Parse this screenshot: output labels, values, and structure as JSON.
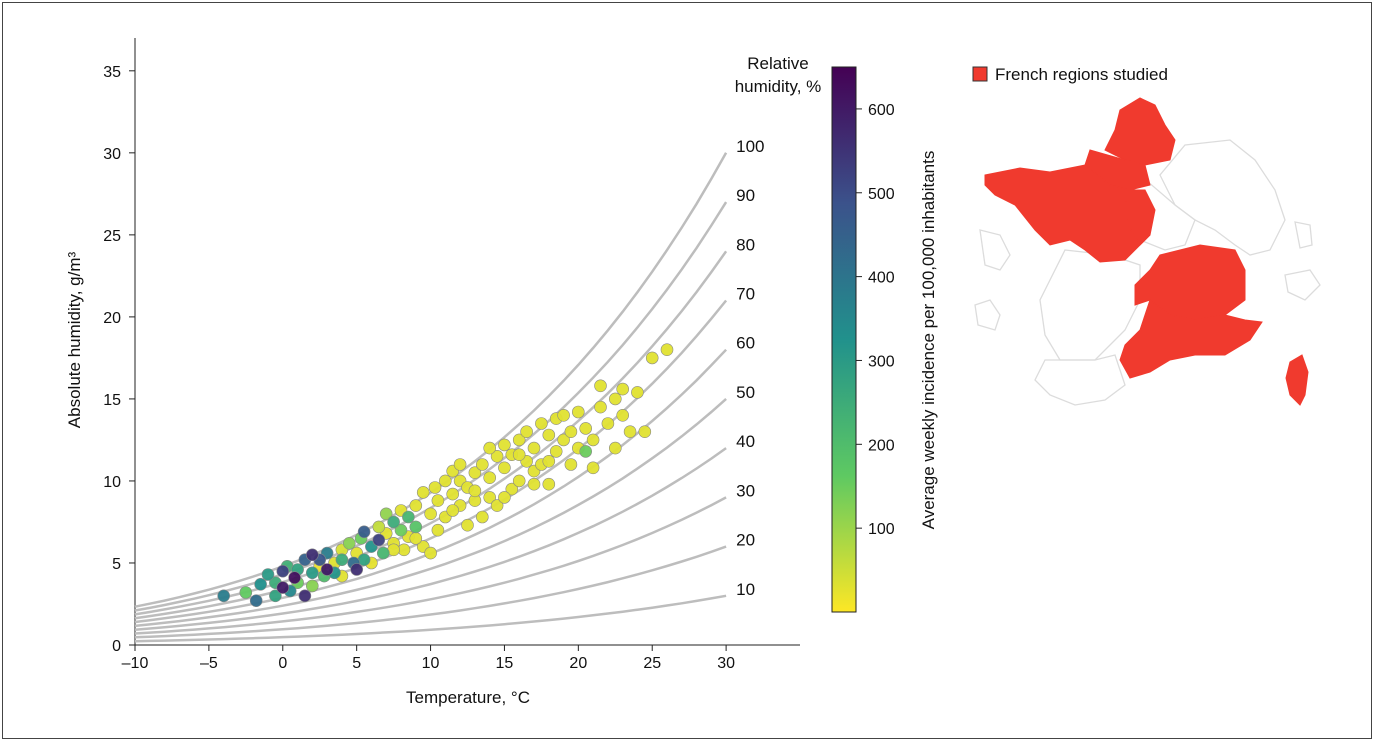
{
  "chart_data": {
    "type": "scatter",
    "xlabel": "Temperature, °C",
    "ylabel": "Absolute humidity, g/m³",
    "xlim": [
      -10,
      35
    ],
    "ylim": [
      0,
      37
    ],
    "x_ticks": [
      -10,
      -5,
      0,
      5,
      10,
      15,
      20,
      25,
      30
    ],
    "x_tick_labels": [
      "–10",
      "–5",
      "0",
      "5",
      "10",
      "15",
      "20",
      "25",
      "30"
    ],
    "y_ticks": [
      0,
      5,
      10,
      15,
      20,
      25,
      30,
      35
    ],
    "y_tick_labels": [
      "0",
      "5",
      "10",
      "15",
      "20",
      "25",
      "30",
      "35"
    ],
    "relative_humidity_title": [
      "Relative",
      "humidity, %"
    ],
    "relative_humidity_curves": [
      10,
      20,
      30,
      40,
      50,
      60,
      70,
      80,
      90,
      100
    ],
    "colorbar": {
      "label": "Average weekly incidence per 100,000 inhabitants",
      "range": [
        0,
        650
      ],
      "ticks": [
        100,
        200,
        300,
        400,
        500,
        600
      ],
      "colormap": "viridis"
    },
    "points": [
      {
        "x": -4,
        "y": 3.0,
        "c": 380
      },
      {
        "x": -2.5,
        "y": 3.2,
        "c": 160
      },
      {
        "x": -1.8,
        "y": 2.7,
        "c": 420
      },
      {
        "x": -1.5,
        "y": 3.7,
        "c": 330
      },
      {
        "x": -1.0,
        "y": 4.3,
        "c": 300
      },
      {
        "x": -0.5,
        "y": 3.8,
        "c": 250
      },
      {
        "x": -0.5,
        "y": 3.0,
        "c": 280
      },
      {
        "x": 0.0,
        "y": 4.5,
        "c": 520
      },
      {
        "x": 0.0,
        "y": 3.5,
        "c": 600
      },
      {
        "x": 0.3,
        "y": 4.8,
        "c": 240
      },
      {
        "x": 0.5,
        "y": 3.3,
        "c": 350
      },
      {
        "x": 0.8,
        "y": 4.1,
        "c": 620
      },
      {
        "x": 1.0,
        "y": 4.6,
        "c": 280
      },
      {
        "x": 1.0,
        "y": 3.8,
        "c": 150
      },
      {
        "x": 1.5,
        "y": 5.2,
        "c": 450
      },
      {
        "x": 1.5,
        "y": 3.0,
        "c": 560
      },
      {
        "x": 2.0,
        "y": 5.5,
        "c": 560
      },
      {
        "x": 2.0,
        "y": 4.4,
        "c": 300
      },
      {
        "x": 2.0,
        "y": 3.6,
        "c": 120
      },
      {
        "x": 2.5,
        "y": 4.8,
        "c": 20
      },
      {
        "x": 2.5,
        "y": 5.2,
        "c": 480
      },
      {
        "x": 2.8,
        "y": 4.2,
        "c": 200
      },
      {
        "x": 3.0,
        "y": 5.6,
        "c": 380
      },
      {
        "x": 3.0,
        "y": 4.6,
        "c": 600
      },
      {
        "x": 3.5,
        "y": 5.0,
        "c": 30
      },
      {
        "x": 3.5,
        "y": 4.4,
        "c": 320
      },
      {
        "x": 4.0,
        "y": 5.8,
        "c": 40
      },
      {
        "x": 4.0,
        "y": 5.2,
        "c": 250
      },
      {
        "x": 4.0,
        "y": 4.2,
        "c": 30
      },
      {
        "x": 4.5,
        "y": 6.2,
        "c": 120
      },
      {
        "x": 4.8,
        "y": 5.0,
        "c": 420
      },
      {
        "x": 5.0,
        "y": 5.6,
        "c": 30
      },
      {
        "x": 5.0,
        "y": 4.6,
        "c": 560
      },
      {
        "x": 5.3,
        "y": 6.5,
        "c": 150
      },
      {
        "x": 5.5,
        "y": 5.2,
        "c": 280
      },
      {
        "x": 5.5,
        "y": 6.9,
        "c": 460
      },
      {
        "x": 6.0,
        "y": 6.0,
        "c": 320
      },
      {
        "x": 6.0,
        "y": 5.0,
        "c": 25
      },
      {
        "x": 6.5,
        "y": 6.4,
        "c": 520
      },
      {
        "x": 6.5,
        "y": 7.2,
        "c": 60
      },
      {
        "x": 6.8,
        "y": 5.6,
        "c": 220
      },
      {
        "x": 7.0,
        "y": 6.8,
        "c": 30
      },
      {
        "x": 7.0,
        "y": 8.0,
        "c": 110
      },
      {
        "x": 7.5,
        "y": 7.5,
        "c": 250
      },
      {
        "x": 7.5,
        "y": 6.2,
        "c": 30
      },
      {
        "x": 8.0,
        "y": 7.0,
        "c": 150
      },
      {
        "x": 8.0,
        "y": 8.2,
        "c": 30
      },
      {
        "x": 8.2,
        "y": 5.8,
        "c": 30
      },
      {
        "x": 8.5,
        "y": 7.8,
        "c": 220
      },
      {
        "x": 8.5,
        "y": 6.6,
        "c": 30
      },
      {
        "x": 9.0,
        "y": 8.5,
        "c": 30
      },
      {
        "x": 9.0,
        "y": 7.2,
        "c": 180
      },
      {
        "x": 9.5,
        "y": 9.3,
        "c": 30
      },
      {
        "x": 9.5,
        "y": 6.0,
        "c": 30
      },
      {
        "x": 10.0,
        "y": 8.0,
        "c": 30
      },
      {
        "x": 10.0,
        "y": 5.6,
        "c": 30
      },
      {
        "x": 10.3,
        "y": 9.6,
        "c": 30
      },
      {
        "x": 10.5,
        "y": 8.8,
        "c": 30
      },
      {
        "x": 11.0,
        "y": 10.0,
        "c": 30
      },
      {
        "x": 11.0,
        "y": 7.8,
        "c": 30
      },
      {
        "x": 11.5,
        "y": 9.2,
        "c": 30
      },
      {
        "x": 11.5,
        "y": 10.6,
        "c": 30
      },
      {
        "x": 12.0,
        "y": 8.5,
        "c": 30
      },
      {
        "x": 12.0,
        "y": 10.0,
        "c": 30
      },
      {
        "x": 12.5,
        "y": 9.6,
        "c": 30
      },
      {
        "x": 12.5,
        "y": 7.3,
        "c": 30
      },
      {
        "x": 13.0,
        "y": 10.5,
        "c": 30
      },
      {
        "x": 13.0,
        "y": 8.8,
        "c": 30
      },
      {
        "x": 13.5,
        "y": 11.0,
        "c": 30
      },
      {
        "x": 13.5,
        "y": 7.8,
        "c": 30
      },
      {
        "x": 14.0,
        "y": 10.2,
        "c": 30
      },
      {
        "x": 14.0,
        "y": 9.0,
        "c": 30
      },
      {
        "x": 14.5,
        "y": 11.5,
        "c": 30
      },
      {
        "x": 14.5,
        "y": 8.5,
        "c": 30
      },
      {
        "x": 15.0,
        "y": 10.8,
        "c": 30
      },
      {
        "x": 15.0,
        "y": 12.2,
        "c": 30
      },
      {
        "x": 15.5,
        "y": 9.5,
        "c": 30
      },
      {
        "x": 15.5,
        "y": 11.6,
        "c": 30
      },
      {
        "x": 16.0,
        "y": 12.5,
        "c": 30
      },
      {
        "x": 16.0,
        "y": 10.0,
        "c": 30
      },
      {
        "x": 16.5,
        "y": 11.2,
        "c": 30
      },
      {
        "x": 16.5,
        "y": 13.0,
        "c": 30
      },
      {
        "x": 17.0,
        "y": 12.0,
        "c": 30
      },
      {
        "x": 17.0,
        "y": 10.6,
        "c": 30
      },
      {
        "x": 17.5,
        "y": 13.5,
        "c": 30
      },
      {
        "x": 17.5,
        "y": 11.0,
        "c": 30
      },
      {
        "x": 18.0,
        "y": 12.8,
        "c": 30
      },
      {
        "x": 18.0,
        "y": 9.8,
        "c": 30
      },
      {
        "x": 18.5,
        "y": 13.8,
        "c": 30
      },
      {
        "x": 18.5,
        "y": 11.8,
        "c": 30
      },
      {
        "x": 19.0,
        "y": 12.5,
        "c": 30
      },
      {
        "x": 19.0,
        "y": 14.0,
        "c": 30
      },
      {
        "x": 19.5,
        "y": 13.0,
        "c": 30
      },
      {
        "x": 19.5,
        "y": 11.0,
        "c": 30
      },
      {
        "x": 20.0,
        "y": 14.2,
        "c": 30
      },
      {
        "x": 20.5,
        "y": 11.8,
        "c": 150
      },
      {
        "x": 20.5,
        "y": 13.2,
        "c": 30
      },
      {
        "x": 21.0,
        "y": 12.5,
        "c": 30
      },
      {
        "x": 21.0,
        "y": 10.8,
        "c": 30
      },
      {
        "x": 21.5,
        "y": 14.5,
        "c": 30
      },
      {
        "x": 21.5,
        "y": 15.8,
        "c": 30
      },
      {
        "x": 22.0,
        "y": 13.5,
        "c": 30
      },
      {
        "x": 22.5,
        "y": 15.0,
        "c": 30
      },
      {
        "x": 22.5,
        "y": 12.0,
        "c": 30
      },
      {
        "x": 23.0,
        "y": 14.0,
        "c": 30
      },
      {
        "x": 23.0,
        "y": 15.6,
        "c": 30
      },
      {
        "x": 23.5,
        "y": 13.0,
        "c": 30
      },
      {
        "x": 24.0,
        "y": 15.4,
        "c": 30
      },
      {
        "x": 24.5,
        "y": 13.0,
        "c": 30
      },
      {
        "x": 25.0,
        "y": 17.5,
        "c": 30
      },
      {
        "x": 26.0,
        "y": 18.0,
        "c": 30
      },
      {
        "x": 12.0,
        "y": 11.0,
        "c": 30
      },
      {
        "x": 14.0,
        "y": 12.0,
        "c": 30
      },
      {
        "x": 16.0,
        "y": 11.6,
        "c": 30
      },
      {
        "x": 18.0,
        "y": 11.2,
        "c": 30
      },
      {
        "x": 20.0,
        "y": 12.0,
        "c": 30
      },
      {
        "x": 10.5,
        "y": 7.0,
        "c": 30
      },
      {
        "x": 11.5,
        "y": 8.2,
        "c": 30
      },
      {
        "x": 13.0,
        "y": 9.4,
        "c": 30
      },
      {
        "x": 15.0,
        "y": 9.0,
        "c": 30
      },
      {
        "x": 17.0,
        "y": 9.8,
        "c": 30
      },
      {
        "x": 9.0,
        "y": 6.5,
        "c": 30
      },
      {
        "x": 7.5,
        "y": 5.8,
        "c": 30
      }
    ]
  },
  "map": {
    "legend_label": "French regions studied",
    "highlight_color": "#f03a2e",
    "outline_color": "#dcdcdc"
  }
}
